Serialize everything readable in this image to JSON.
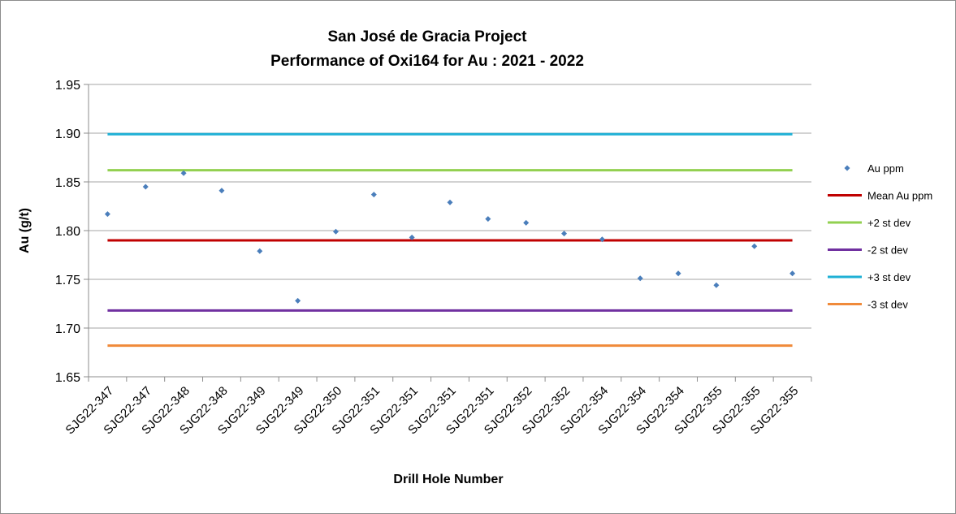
{
  "chart_data": {
    "type": "scatter",
    "title": [
      "San José de Gracia Project",
      "Performance of Oxi164 for Au : 2021 - 2022"
    ],
    "xlabel": "Drill Hole Number",
    "ylabel": "Au (g/t)",
    "ylim": [
      1.65,
      1.95
    ],
    "y_ticks": [
      "1.65",
      "1.70",
      "1.75",
      "1.80",
      "1.85",
      "1.90",
      "1.95"
    ],
    "grid": true,
    "legend_position": "right",
    "categories": [
      "SJG22-347",
      "SJG22-347",
      "SJG22-348",
      "SJG22-348",
      "SJG22-349",
      "SJG22-349",
      "SJG22-350",
      "SJG22-351",
      "SJG22-351",
      "SJG22-351",
      "SJG22-351",
      "SJG22-352",
      "SJG22-352",
      "SJG22-354",
      "SJG22-354",
      "SJG22-354",
      "SJG22-355",
      "SJG22-355",
      "SJG22-355"
    ],
    "series": [
      {
        "name": "Au ppm",
        "kind": "marker",
        "color": "#4a7ebb",
        "values": [
          1.817,
          1.845,
          1.859,
          1.841,
          1.779,
          1.728,
          1.799,
          1.837,
          1.793,
          1.829,
          1.812,
          1.808,
          1.797,
          1.791,
          1.751,
          1.756,
          1.744,
          1.784,
          1.756
        ]
      },
      {
        "name": "Mean Au ppm",
        "kind": "line",
        "color": "#c00000",
        "value": 1.79
      },
      {
        "name": "+2 st dev",
        "kind": "line",
        "color": "#92d050",
        "value": 1.862
      },
      {
        "name": "-2 st dev",
        "kind": "line",
        "color": "#7030a0",
        "value": 1.718
      },
      {
        "name": "+3 st dev",
        "kind": "line",
        "color": "#1fb0d5",
        "value": 1.899
      },
      {
        "name": "-3 st dev",
        "kind": "line",
        "color": "#f08a3a",
        "value": 1.682
      }
    ]
  }
}
